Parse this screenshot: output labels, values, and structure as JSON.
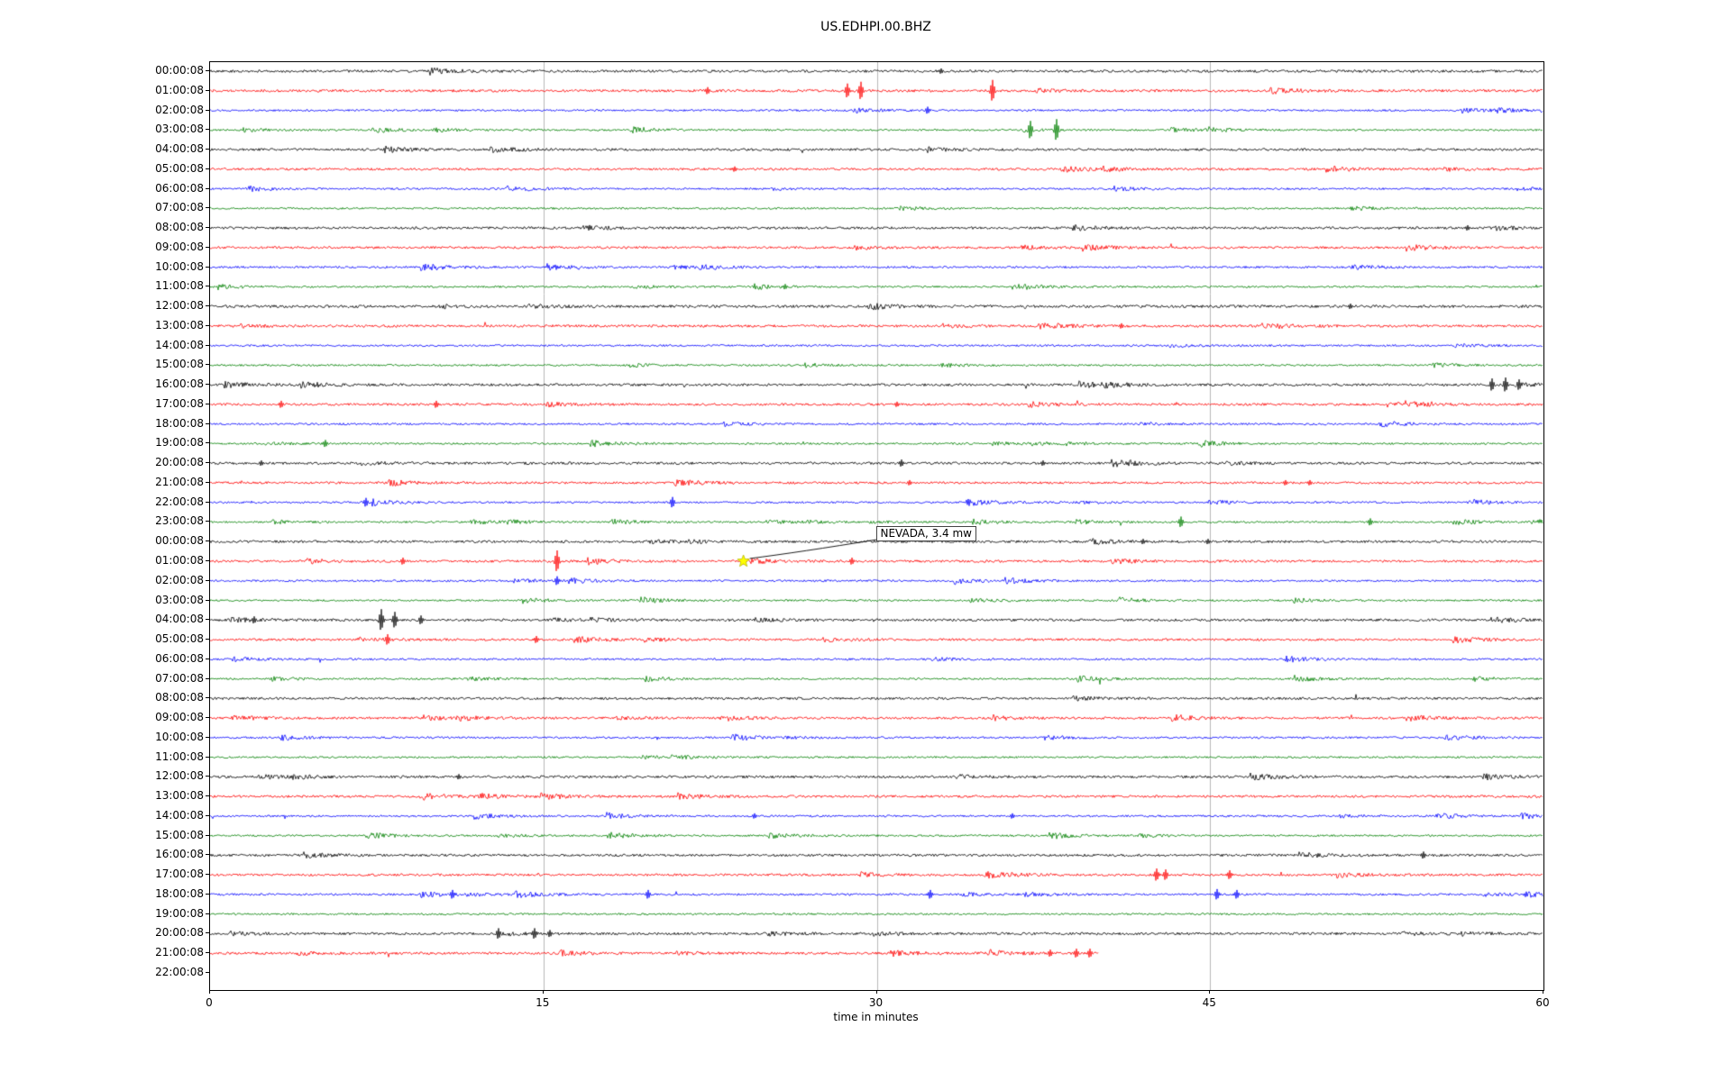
{
  "title": "US.EDHPI.00.BHZ",
  "chart_data": {
    "type": "line",
    "subtype": "helicorder-seismogram",
    "title": "US.EDHPI.00.BHZ",
    "xlabel": "time in minutes",
    "x_ticks": [
      "0",
      "15",
      "30",
      "45",
      "60"
    ],
    "xlim": [
      0,
      60
    ],
    "grid_x": [
      15,
      30,
      45
    ],
    "grid_color": "#b8b8b8",
    "row_duration_minutes": 60,
    "trace_color_cycle": [
      "#000000",
      "#ff0000",
      "#0000ff",
      "#008000"
    ],
    "annotation": {
      "text": "NEVADA, 3.4 mw",
      "marker": "yellow-star",
      "marker_color": "#ffff00",
      "row_index": 25,
      "x_minutes": 24.0,
      "box_x_minutes": 30.0
    },
    "rows": [
      {
        "label": "00:00:08",
        "color_index": 0,
        "has_trace": true,
        "amp": 1.2,
        "spikes": [
          {
            "m": 32.9,
            "a": 3
          }
        ]
      },
      {
        "label": "01:00:08",
        "color_index": 1,
        "has_trace": true,
        "amp": 1.25,
        "spikes": [
          {
            "m": 22.4,
            "a": 4
          },
          {
            "m": 28.7,
            "a": 8
          },
          {
            "m": 29.3,
            "a": 10
          },
          {
            "m": 35.2,
            "a": 12
          }
        ]
      },
      {
        "label": "02:00:08",
        "color_index": 2,
        "has_trace": true,
        "amp": 0.95,
        "spikes": [
          {
            "m": 32.3,
            "a": 4
          }
        ]
      },
      {
        "label": "03:00:08",
        "color_index": 3,
        "has_trace": true,
        "amp": 0.9,
        "spikes": [
          {
            "m": 36.9,
            "a": 10
          },
          {
            "m": 38.1,
            "a": 12
          }
        ]
      },
      {
        "label": "04:00:08",
        "color_index": 0,
        "has_trace": true,
        "amp": 1.15,
        "spikes": []
      },
      {
        "label": "05:00:08",
        "color_index": 1,
        "has_trace": true,
        "amp": 1.1,
        "spikes": [
          {
            "m": 23.6,
            "a": 3
          }
        ]
      },
      {
        "label": "06:00:08",
        "color_index": 2,
        "has_trace": true,
        "amp": 0.95,
        "spikes": []
      },
      {
        "label": "07:00:08",
        "color_index": 3,
        "has_trace": true,
        "amp": 0.9,
        "spikes": []
      },
      {
        "label": "08:00:08",
        "color_index": 0,
        "has_trace": true,
        "amp": 1.2,
        "spikes": [
          {
            "m": 56.6,
            "a": 3
          }
        ]
      },
      {
        "label": "09:00:08",
        "color_index": 1,
        "has_trace": true,
        "amp": 1.1,
        "spikes": []
      },
      {
        "label": "10:00:08",
        "color_index": 2,
        "has_trace": true,
        "amp": 1.0,
        "spikes": []
      },
      {
        "label": "11:00:08",
        "color_index": 3,
        "has_trace": true,
        "amp": 0.9,
        "spikes": [
          {
            "m": 25.9,
            "a": 3
          }
        ]
      },
      {
        "label": "12:00:08",
        "color_index": 0,
        "has_trace": true,
        "amp": 1.3,
        "spikes": [
          {
            "m": 51.3,
            "a": 3
          }
        ]
      },
      {
        "label": "13:00:08",
        "color_index": 1,
        "has_trace": true,
        "amp": 1.2,
        "spikes": [
          {
            "m": 41.0,
            "a": 3
          }
        ]
      },
      {
        "label": "14:00:08",
        "color_index": 2,
        "has_trace": true,
        "amp": 0.95,
        "spikes": []
      },
      {
        "label": "15:00:08",
        "color_index": 3,
        "has_trace": true,
        "amp": 0.9,
        "spikes": []
      },
      {
        "label": "16:00:08",
        "color_index": 0,
        "has_trace": true,
        "amp": 1.2,
        "spikes": [
          {
            "m": 57.7,
            "a": 7
          },
          {
            "m": 58.3,
            "a": 8
          },
          {
            "m": 58.9,
            "a": 6
          }
        ]
      },
      {
        "label": "17:00:08",
        "color_index": 1,
        "has_trace": true,
        "amp": 1.1,
        "spikes": [
          {
            "m": 3.2,
            "a": 4
          },
          {
            "m": 10.2,
            "a": 4
          },
          {
            "m": 30.9,
            "a": 3
          }
        ]
      },
      {
        "label": "18:00:08",
        "color_index": 2,
        "has_trace": true,
        "amp": 0.95,
        "spikes": []
      },
      {
        "label": "19:00:08",
        "color_index": 3,
        "has_trace": true,
        "amp": 0.9,
        "spikes": [
          {
            "m": 5.2,
            "a": 4
          }
        ]
      },
      {
        "label": "20:00:08",
        "color_index": 0,
        "has_trace": true,
        "amp": 1.2,
        "spikes": [
          {
            "m": 2.3,
            "a": 3
          },
          {
            "m": 31.1,
            "a": 4
          },
          {
            "m": 37.5,
            "a": 3
          }
        ]
      },
      {
        "label": "21:00:08",
        "color_index": 1,
        "has_trace": true,
        "amp": 1.1,
        "spikes": [
          {
            "m": 31.5,
            "a": 3
          },
          {
            "m": 48.4,
            "a": 3
          },
          {
            "m": 49.5,
            "a": 3
          }
        ]
      },
      {
        "label": "22:00:08",
        "color_index": 2,
        "has_trace": true,
        "amp": 0.95,
        "spikes": [
          {
            "m": 7.0,
            "a": 5
          },
          {
            "m": 20.8,
            "a": 6
          }
        ]
      },
      {
        "label": "23:00:08",
        "color_index": 3,
        "has_trace": true,
        "amp": 0.9,
        "spikes": [
          {
            "m": 43.7,
            "a": 6
          },
          {
            "m": 52.2,
            "a": 4
          }
        ]
      },
      {
        "label": "00:00:08",
        "color_index": 0,
        "has_trace": true,
        "amp": 1.2,
        "spikes": [
          {
            "m": 42.0,
            "a": 3
          },
          {
            "m": 44.9,
            "a": 3
          }
        ]
      },
      {
        "label": "01:00:08",
        "color_index": 1,
        "has_trace": true,
        "amp": 1.15,
        "spikes": [
          {
            "m": 8.7,
            "a": 4
          },
          {
            "m": 15.6,
            "a": 12
          },
          {
            "m": 24.0,
            "a": 4
          },
          {
            "m": 28.9,
            "a": 4
          }
        ]
      },
      {
        "label": "02:00:08",
        "color_index": 2,
        "has_trace": true,
        "amp": 0.95,
        "spikes": [
          {
            "m": 15.6,
            "a": 5
          }
        ]
      },
      {
        "label": "03:00:08",
        "color_index": 3,
        "has_trace": true,
        "amp": 0.9,
        "spikes": []
      },
      {
        "label": "04:00:08",
        "color_index": 0,
        "has_trace": true,
        "amp": 1.2,
        "spikes": [
          {
            "m": 2.0,
            "a": 4
          },
          {
            "m": 7.7,
            "a": 12
          },
          {
            "m": 8.3,
            "a": 9
          },
          {
            "m": 9.5,
            "a": 5
          }
        ]
      },
      {
        "label": "05:00:08",
        "color_index": 1,
        "has_trace": true,
        "amp": 1.1,
        "spikes": [
          {
            "m": 8.0,
            "a": 6
          },
          {
            "m": 14.7,
            "a": 4
          }
        ]
      },
      {
        "label": "06:00:08",
        "color_index": 2,
        "has_trace": true,
        "amp": 0.95,
        "spikes": []
      },
      {
        "label": "07:00:08",
        "color_index": 3,
        "has_trace": true,
        "amp": 0.9,
        "spikes": []
      },
      {
        "label": "08:00:08",
        "color_index": 0,
        "has_trace": true,
        "amp": 1.15,
        "spikes": []
      },
      {
        "label": "09:00:08",
        "color_index": 1,
        "has_trace": true,
        "amp": 1.1,
        "spikes": []
      },
      {
        "label": "10:00:08",
        "color_index": 2,
        "has_trace": true,
        "amp": 0.95,
        "spikes": []
      },
      {
        "label": "11:00:08",
        "color_index": 3,
        "has_trace": true,
        "amp": 0.9,
        "spikes": []
      },
      {
        "label": "12:00:08",
        "color_index": 0,
        "has_trace": true,
        "amp": 1.25,
        "spikes": [
          {
            "m": 11.2,
            "a": 3
          }
        ]
      },
      {
        "label": "13:00:08",
        "color_index": 1,
        "has_trace": true,
        "amp": 1.15,
        "spikes": []
      },
      {
        "label": "14:00:08",
        "color_index": 2,
        "has_trace": true,
        "amp": 0.95,
        "spikes": [
          {
            "m": 24.5,
            "a": 3
          },
          {
            "m": 36.1,
            "a": 3
          }
        ]
      },
      {
        "label": "15:00:08",
        "color_index": 3,
        "has_trace": true,
        "amp": 0.9,
        "spikes": []
      },
      {
        "label": "16:00:08",
        "color_index": 0,
        "has_trace": true,
        "amp": 1.15,
        "spikes": [
          {
            "m": 54.6,
            "a": 4
          }
        ]
      },
      {
        "label": "17:00:08",
        "color_index": 1,
        "has_trace": true,
        "amp": 1.1,
        "spikes": [
          {
            "m": 42.6,
            "a": 7
          },
          {
            "m": 43.0,
            "a": 6
          },
          {
            "m": 45.9,
            "a": 5
          }
        ]
      },
      {
        "label": "18:00:08",
        "color_index": 2,
        "has_trace": true,
        "amp": 1.0,
        "spikes": [
          {
            "m": 10.9,
            "a": 5
          },
          {
            "m": 19.7,
            "a": 5
          },
          {
            "m": 32.4,
            "a": 5
          },
          {
            "m": 45.3,
            "a": 6
          },
          {
            "m": 46.2,
            "a": 5
          }
        ]
      },
      {
        "label": "19:00:08",
        "color_index": 3,
        "has_trace": true,
        "amp": 0.9,
        "spikes": []
      },
      {
        "label": "20:00:08",
        "color_index": 0,
        "has_trace": true,
        "amp": 1.2,
        "spikes": [
          {
            "m": 13.0,
            "a": 6
          },
          {
            "m": 14.6,
            "a": 6
          },
          {
            "m": 15.3,
            "a": 4
          }
        ]
      },
      {
        "label": "21:00:08",
        "color_index": 1,
        "has_trace": true,
        "amp": 1.15,
        "extent_minutes": 40,
        "spikes": [
          {
            "m": 37.8,
            "a": 4
          },
          {
            "m": 39.0,
            "a": 5
          },
          {
            "m": 39.6,
            "a": 5
          }
        ]
      },
      {
        "label": "22:00:08",
        "color_index": 2,
        "has_trace": false,
        "amp": 0,
        "spikes": []
      }
    ]
  }
}
